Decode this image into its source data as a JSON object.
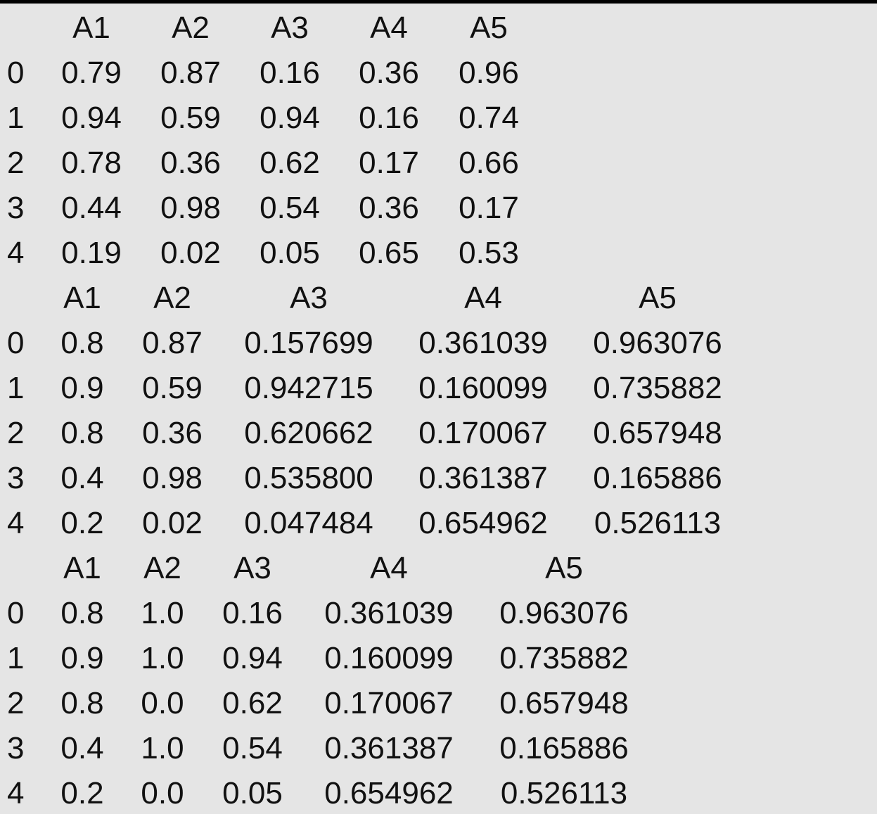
{
  "tables": [
    {
      "columns": [
        "A1",
        "A2",
        "A3",
        "A4",
        "A5"
      ],
      "rows": [
        {
          "index": "0",
          "values": [
            "0.79",
            "0.87",
            "0.16",
            "0.36",
            "0.96"
          ]
        },
        {
          "index": "1",
          "values": [
            "0.94",
            "0.59",
            "0.94",
            "0.16",
            "0.74"
          ]
        },
        {
          "index": "2",
          "values": [
            "0.78",
            "0.36",
            "0.62",
            "0.17",
            "0.66"
          ]
        },
        {
          "index": "3",
          "values": [
            "0.44",
            "0.98",
            "0.54",
            "0.36",
            "0.17"
          ]
        },
        {
          "index": "4",
          "values": [
            "0.19",
            "0.02",
            "0.05",
            "0.65",
            "0.53"
          ]
        }
      ]
    },
    {
      "columns": [
        "A1",
        "A2",
        "A3",
        "A4",
        "A5"
      ],
      "rows": [
        {
          "index": "0",
          "values": [
            "0.8",
            "0.87",
            "0.157699",
            "0.361039",
            "0.963076"
          ]
        },
        {
          "index": "1",
          "values": [
            "0.9",
            "0.59",
            "0.942715",
            "0.160099",
            "0.735882"
          ]
        },
        {
          "index": "2",
          "values": [
            "0.8",
            "0.36",
            "0.620662",
            "0.170067",
            "0.657948"
          ]
        },
        {
          "index": "3",
          "values": [
            "0.4",
            "0.98",
            "0.535800",
            "0.361387",
            "0.165886"
          ]
        },
        {
          "index": "4",
          "values": [
            "0.2",
            "0.02",
            "0.047484",
            "0.654962",
            "0.526113"
          ]
        }
      ]
    },
    {
      "columns": [
        "A1",
        "A2",
        "A3",
        "A4",
        "A5"
      ],
      "rows": [
        {
          "index": "0",
          "values": [
            "0.8",
            "1.0",
            "0.16",
            "0.361039",
            "0.963076"
          ]
        },
        {
          "index": "1",
          "values": [
            "0.9",
            "1.0",
            "0.94",
            "0.160099",
            "0.735882"
          ]
        },
        {
          "index": "2",
          "values": [
            "0.8",
            "0.0",
            "0.62",
            "0.170067",
            "0.657948"
          ]
        },
        {
          "index": "3",
          "values": [
            "0.4",
            "1.0",
            "0.54",
            "0.361387",
            "0.165886"
          ]
        },
        {
          "index": "4",
          "values": [
            "0.2",
            "0.0",
            "0.05",
            "0.654962",
            "0.526113"
          ]
        }
      ]
    }
  ]
}
